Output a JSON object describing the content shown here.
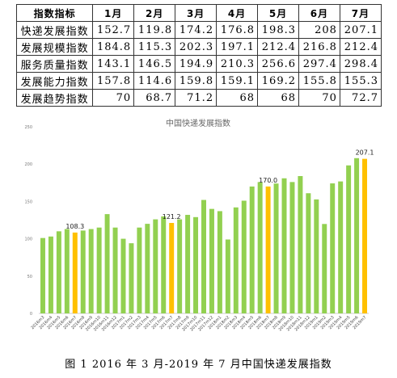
{
  "table": {
    "header": [
      "指数指标",
      "1月",
      "2月",
      "3月",
      "4月",
      "5月",
      "6月",
      "7月"
    ],
    "rows": [
      [
        "快递发展指数",
        "152.7",
        "119.8",
        "174.2",
        "176.8",
        "198.3",
        "208",
        "207.1"
      ],
      [
        "发展规模指数",
        "184.8",
        "115.3",
        "202.3",
        "197.1",
        "212.4",
        "216.8",
        "212.4"
      ],
      [
        "服务质量指数",
        "143.1",
        "146.5",
        "194.9",
        "210.3",
        "256.6",
        "297.4",
        "298.4"
      ],
      [
        "发展能力指数",
        "157.8",
        "114.6",
        "159.8",
        "159.1",
        "169.2",
        "155.8",
        "155.3"
      ],
      [
        "发展趋势指数",
        "70",
        "68.7",
        "71.2",
        "68",
        "68",
        "70",
        "72.7"
      ]
    ]
  },
  "chart_data": {
    "type": "bar",
    "title": "中国快递发展指数",
    "categories": [
      "2016m3",
      "2016m4",
      "2016m5",
      "2016m6",
      "2016m7",
      "2016m8",
      "2016m9",
      "2016m10",
      "2016m11",
      "2016m12",
      "2017m1",
      "2017m2",
      "2017m3",
      "2017m4",
      "2017m5",
      "2017m6",
      "2017m7",
      "2017m8",
      "2017m9",
      "2017m10",
      "2017m11",
      "2017m12",
      "2018m1",
      "2018m2",
      "2018m3",
      "2018m4",
      "2018m5",
      "2018m6",
      "2018m7",
      "2018m8",
      "2018m9",
      "2018m10",
      "2018m11",
      "2018m12",
      "2019m1",
      "2019m2",
      "2019m3",
      "2019m4",
      "2019m5",
      "2019m6",
      "2019m7"
    ],
    "values": [
      101,
      103,
      110,
      113,
      108.3,
      111,
      113,
      115,
      133,
      115,
      100,
      94,
      115,
      120,
      126,
      130,
      121.2,
      126,
      132,
      129,
      152,
      140,
      137,
      99,
      142,
      151,
      170,
      176,
      170,
      174,
      181,
      176,
      184,
      161,
      152.7,
      119.8,
      174.2,
      176.8,
      198.3,
      208,
      207.1
    ],
    "value_labels": [
      null,
      null,
      null,
      null,
      "108.3",
      null,
      null,
      null,
      null,
      null,
      null,
      null,
      null,
      null,
      null,
      null,
      "121.2",
      null,
      null,
      null,
      null,
      null,
      null,
      null,
      null,
      null,
      null,
      null,
      "170.0",
      null,
      null,
      null,
      null,
      null,
      null,
      null,
      null,
      null,
      null,
      null,
      "207.1"
    ],
    "colors": [
      "#92d050",
      "#92d050",
      "#92d050",
      "#92d050",
      "#ffc000",
      "#92d050",
      "#92d050",
      "#92d050",
      "#92d050",
      "#92d050",
      "#92d050",
      "#92d050",
      "#92d050",
      "#92d050",
      "#92d050",
      "#92d050",
      "#ffc000",
      "#92d050",
      "#92d050",
      "#92d050",
      "#92d050",
      "#92d050",
      "#92d050",
      "#92d050",
      "#92d050",
      "#92d050",
      "#92d050",
      "#92d050",
      "#ffc000",
      "#92d050",
      "#92d050",
      "#92d050",
      "#92d050",
      "#92d050",
      "#92d050",
      "#92d050",
      "#92d050",
      "#92d050",
      "#92d050",
      "#92d050",
      "#ffc000"
    ],
    "ylim": [
      0,
      250
    ],
    "yticks": [
      0,
      50,
      100,
      150,
      200,
      250
    ],
    "grid": false
  },
  "caption": "图 1 2016 年 3 月-2019 年 7 月中国快递发展指数"
}
